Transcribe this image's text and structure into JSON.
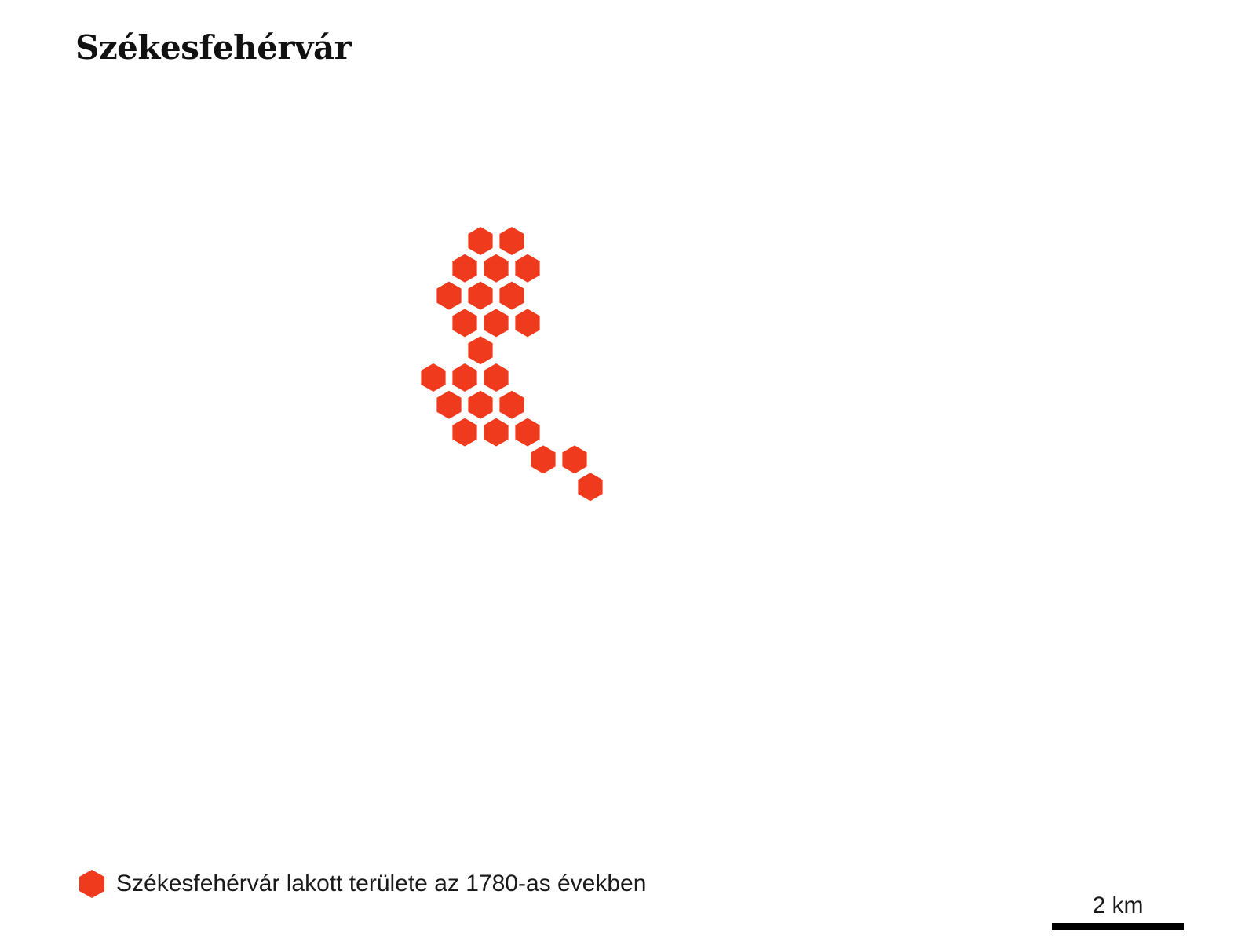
{
  "title": "Székesfehérvár",
  "colors": {
    "settlement_fill": "#f03a1e",
    "scale_bar": "#000000",
    "text": "#111111"
  },
  "legend": {
    "swatch_icon": "hexagon-icon",
    "label": "Székesfehérvár lakott területe az 1780-as években"
  },
  "scale_bar": {
    "label": "2 km"
  },
  "hex_grid": {
    "description_of_cells_rows": "occupied cells by row (top to bottom) and half-step column index",
    "cells": [
      [
        0,
        2
      ],
      [
        0,
        4
      ],
      [
        1,
        1
      ],
      [
        1,
        3
      ],
      [
        1,
        5
      ],
      [
        2,
        0
      ],
      [
        2,
        2
      ],
      [
        2,
        4
      ],
      [
        3,
        1
      ],
      [
        3,
        3
      ],
      [
        3,
        5
      ],
      [
        4,
        2
      ],
      [
        5,
        -1
      ],
      [
        5,
        1
      ],
      [
        5,
        3
      ],
      [
        6,
        0
      ],
      [
        6,
        2
      ],
      [
        6,
        4
      ],
      [
        7,
        1
      ],
      [
        7,
        3
      ],
      [
        7,
        5
      ],
      [
        8,
        6
      ],
      [
        8,
        8
      ],
      [
        9,
        9
      ]
    ]
  }
}
